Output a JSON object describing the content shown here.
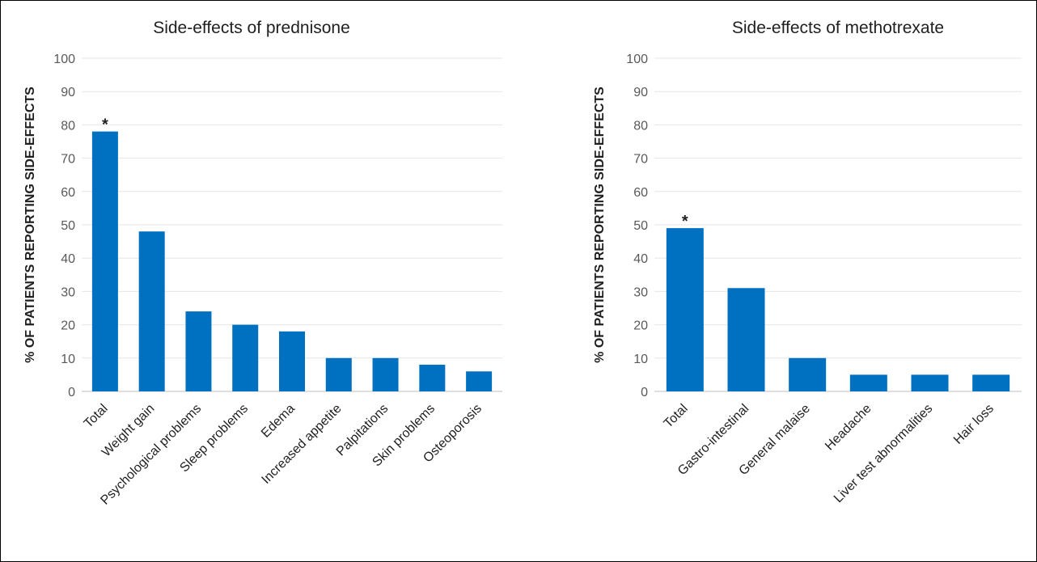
{
  "chart_data": [
    {
      "type": "bar",
      "title": "Side-effects of prednisone",
      "ylabel": "% OF PATIENTS REPORTING SIDE-EFFECTS",
      "xlabel": "",
      "ylim": [
        0,
        100
      ],
      "yticks": [
        0,
        10,
        20,
        30,
        40,
        50,
        60,
        70,
        80,
        90,
        100
      ],
      "grid": true,
      "color": "#0070c0",
      "categories": [
        "Total",
        "Weight gain",
        "Psychological problems",
        "Sleep problems",
        "Edema",
        "Increased appetite",
        "Palpitations",
        "Skin problems",
        "Osteoporosis"
      ],
      "values": [
        78,
        48,
        24,
        20,
        18,
        10,
        10,
        8,
        6
      ],
      "annotations": [
        {
          "category": "Total",
          "text": "*"
        }
      ]
    },
    {
      "type": "bar",
      "title": "Side-effects of methotrexate",
      "ylabel": "% OF PATIENTS REPORTING SIDE-EFFECTS",
      "xlabel": "",
      "ylim": [
        0,
        100
      ],
      "yticks": [
        0,
        10,
        20,
        30,
        40,
        50,
        60,
        70,
        80,
        90,
        100
      ],
      "grid": true,
      "color": "#0070c0",
      "categories": [
        "Total",
        "Gastro-intestinal",
        "General malaise",
        "Headache",
        "Liver test abnormalities",
        "Hair loss"
      ],
      "values": [
        49,
        31,
        10,
        5,
        5,
        5
      ],
      "annotations": [
        {
          "category": "Total",
          "text": "*"
        }
      ]
    }
  ]
}
